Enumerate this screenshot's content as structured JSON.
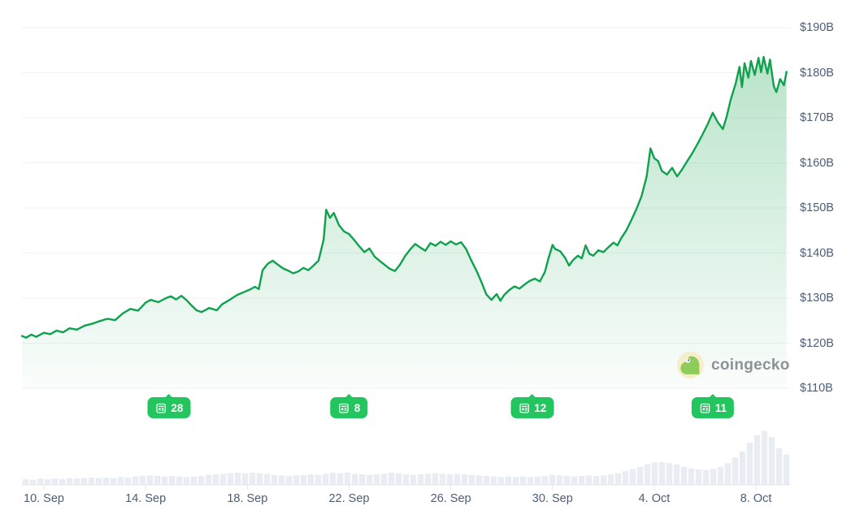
{
  "watermark": {
    "text": "coingecko"
  },
  "colors": {
    "line_green": "#0fa14e",
    "area_green": "#15a34d",
    "badge_green": "#22c55e",
    "label_slate": "#4c5e77",
    "gridline": "#f0f2f5",
    "axis": "#e7eaee",
    "volume_bar": "#e9edf3",
    "watermark_gray": "#8e9199"
  },
  "chart_data": {
    "type": "area",
    "title": "",
    "xlabel": "",
    "ylabel": "",
    "grid": true,
    "legend": false,
    "ylim": [
      110,
      190
    ],
    "y_ticks": [
      {
        "label": "$190B",
        "value": 190
      },
      {
        "label": "$180B",
        "value": 180
      },
      {
        "label": "$170B",
        "value": 170
      },
      {
        "label": "$160B",
        "value": 160
      },
      {
        "label": "$150B",
        "value": 150
      },
      {
        "label": "$140B",
        "value": 140
      },
      {
        "label": "$130B",
        "value": 130
      },
      {
        "label": "$120B",
        "value": 120
      },
      {
        "label": "$110B",
        "value": 110
      }
    ],
    "x_ticks": [
      {
        "label": "10. Sep",
        "t": 0
      },
      {
        "label": "14. Sep",
        "t": 4
      },
      {
        "label": "18. Sep",
        "t": 8
      },
      {
        "label": "22. Sep",
        "t": 12
      },
      {
        "label": "26. Sep",
        "t": 16
      },
      {
        "label": "30. Sep",
        "t": 20
      },
      {
        "label": "4. Oct",
        "t": 24
      },
      {
        "label": "8. Oct",
        "t": 28
      }
    ],
    "series": [
      {
        "name": "market-cap-usd-billions",
        "points": [
          [
            -0.86,
            121.6
          ],
          [
            -0.7,
            121.2
          ],
          [
            -0.5,
            121.9
          ],
          [
            -0.3,
            121.4
          ],
          [
            0,
            122.3
          ],
          [
            0.25,
            122.0
          ],
          [
            0.5,
            122.8
          ],
          [
            0.75,
            122.4
          ],
          [
            1,
            123.3
          ],
          [
            1.3,
            123.0
          ],
          [
            1.6,
            123.9
          ],
          [
            1.9,
            124.3
          ],
          [
            2.2,
            124.9
          ],
          [
            2.5,
            125.4
          ],
          [
            2.8,
            125.1
          ],
          [
            3.1,
            126.6
          ],
          [
            3.4,
            127.6
          ],
          [
            3.7,
            127.2
          ],
          [
            4,
            129.0
          ],
          [
            4.2,
            129.6
          ],
          [
            4.5,
            129.1
          ],
          [
            4.8,
            130.0
          ],
          [
            5,
            130.4
          ],
          [
            5.2,
            129.7
          ],
          [
            5.4,
            130.5
          ],
          [
            5.6,
            129.6
          ],
          [
            5.8,
            128.4
          ],
          [
            6,
            127.3
          ],
          [
            6.2,
            126.9
          ],
          [
            6.5,
            127.8
          ],
          [
            6.8,
            127.3
          ],
          [
            7,
            128.6
          ],
          [
            7.3,
            129.6
          ],
          [
            7.6,
            130.7
          ],
          [
            7.9,
            131.4
          ],
          [
            8.1,
            131.9
          ],
          [
            8.3,
            132.5
          ],
          [
            8.45,
            132.0
          ],
          [
            8.6,
            136.2
          ],
          [
            8.8,
            137.6
          ],
          [
            9,
            138.3
          ],
          [
            9.2,
            137.4
          ],
          [
            9.4,
            136.6
          ],
          [
            9.6,
            136.1
          ],
          [
            9.8,
            135.5
          ],
          [
            10,
            135.9
          ],
          [
            10.2,
            136.7
          ],
          [
            10.4,
            136.2
          ],
          [
            10.6,
            137.2
          ],
          [
            10.8,
            138.3
          ],
          [
            11,
            143.0
          ],
          [
            11.1,
            149.6
          ],
          [
            11.25,
            147.8
          ],
          [
            11.4,
            148.9
          ],
          [
            11.6,
            146.2
          ],
          [
            11.8,
            144.8
          ],
          [
            12,
            144.2
          ],
          [
            12.2,
            142.9
          ],
          [
            12.4,
            141.5
          ],
          [
            12.6,
            140.2
          ],
          [
            12.8,
            141.0
          ],
          [
            13,
            139.2
          ],
          [
            13.3,
            137.8
          ],
          [
            13.6,
            136.5
          ],
          [
            13.8,
            136.0
          ],
          [
            14,
            137.4
          ],
          [
            14.2,
            139.3
          ],
          [
            14.4,
            140.8
          ],
          [
            14.6,
            142.0
          ],
          [
            14.8,
            141.2
          ],
          [
            15,
            140.5
          ],
          [
            15.2,
            142.2
          ],
          [
            15.4,
            141.6
          ],
          [
            15.6,
            142.5
          ],
          [
            15.8,
            141.8
          ],
          [
            16,
            142.6
          ],
          [
            16.2,
            141.9
          ],
          [
            16.4,
            142.4
          ],
          [
            16.6,
            140.9
          ],
          [
            16.8,
            138.4
          ],
          [
            17,
            136.2
          ],
          [
            17.2,
            133.6
          ],
          [
            17.4,
            130.8
          ],
          [
            17.6,
            129.6
          ],
          [
            17.8,
            130.9
          ],
          [
            17.95,
            129.4
          ],
          [
            18.1,
            130.7
          ],
          [
            18.3,
            131.8
          ],
          [
            18.5,
            132.6
          ],
          [
            18.7,
            132.1
          ],
          [
            18.9,
            133.0
          ],
          [
            19.1,
            133.8
          ],
          [
            19.3,
            134.3
          ],
          [
            19.5,
            133.7
          ],
          [
            19.7,
            135.8
          ],
          [
            19.85,
            139.0
          ],
          [
            20,
            141.8
          ],
          [
            20.1,
            140.9
          ],
          [
            20.3,
            140.4
          ],
          [
            20.5,
            138.9
          ],
          [
            20.65,
            137.2
          ],
          [
            20.8,
            138.4
          ],
          [
            21,
            139.4
          ],
          [
            21.15,
            138.8
          ],
          [
            21.3,
            141.7
          ],
          [
            21.45,
            139.8
          ],
          [
            21.6,
            139.4
          ],
          [
            21.8,
            140.6
          ],
          [
            22,
            140.2
          ],
          [
            22.2,
            141.3
          ],
          [
            22.4,
            142.3
          ],
          [
            22.55,
            141.7
          ],
          [
            22.7,
            143.3
          ],
          [
            22.9,
            145.0
          ],
          [
            23.1,
            147.3
          ],
          [
            23.3,
            149.8
          ],
          [
            23.5,
            152.6
          ],
          [
            23.7,
            157.0
          ],
          [
            23.85,
            163.2
          ],
          [
            24,
            161.0
          ],
          [
            24.15,
            160.4
          ],
          [
            24.3,
            158.2
          ],
          [
            24.5,
            157.4
          ],
          [
            24.7,
            158.9
          ],
          [
            24.9,
            157.0
          ],
          [
            25.1,
            158.6
          ],
          [
            25.3,
            160.4
          ],
          [
            25.5,
            162.2
          ],
          [
            25.7,
            164.2
          ],
          [
            25.9,
            166.3
          ],
          [
            26.1,
            168.6
          ],
          [
            26.3,
            171.1
          ],
          [
            26.5,
            169.0
          ],
          [
            26.7,
            167.5
          ],
          [
            26.85,
            170.3
          ],
          [
            27,
            173.9
          ],
          [
            27.2,
            177.6
          ],
          [
            27.35,
            181.3
          ],
          [
            27.45,
            176.8
          ],
          [
            27.55,
            182.1
          ],
          [
            27.7,
            178.9
          ],
          [
            27.8,
            182.6
          ],
          [
            27.95,
            179.5
          ],
          [
            28.1,
            183.3
          ],
          [
            28.2,
            180.1
          ],
          [
            28.3,
            183.5
          ],
          [
            28.45,
            179.8
          ],
          [
            28.55,
            182.9
          ],
          [
            28.7,
            177.0
          ],
          [
            28.8,
            175.7
          ],
          [
            28.95,
            178.6
          ],
          [
            29.1,
            177.2
          ],
          [
            29.2,
            180.2
          ]
        ]
      },
      {
        "name": "volume-relative",
        "type": "bar",
        "values": [
          0.1,
          0.09,
          0.11,
          0.1,
          0.11,
          0.1,
          0.12,
          0.11,
          0.12,
          0.13,
          0.12,
          0.13,
          0.12,
          0.14,
          0.13,
          0.15,
          0.16,
          0.17,
          0.16,
          0.15,
          0.16,
          0.15,
          0.14,
          0.15,
          0.16,
          0.18,
          0.19,
          0.2,
          0.21,
          0.22,
          0.21,
          0.22,
          0.21,
          0.2,
          0.18,
          0.17,
          0.16,
          0.17,
          0.18,
          0.19,
          0.18,
          0.2,
          0.22,
          0.21,
          0.22,
          0.2,
          0.19,
          0.18,
          0.19,
          0.2,
          0.22,
          0.21,
          0.19,
          0.18,
          0.19,
          0.2,
          0.21,
          0.2,
          0.19,
          0.2,
          0.19,
          0.18,
          0.17,
          0.16,
          0.15,
          0.14,
          0.15,
          0.14,
          0.15,
          0.14,
          0.15,
          0.16,
          0.18,
          0.17,
          0.16,
          0.15,
          0.16,
          0.17,
          0.16,
          0.17,
          0.19,
          0.21,
          0.25,
          0.29,
          0.33,
          0.38,
          0.41,
          0.42,
          0.4,
          0.37,
          0.33,
          0.3,
          0.28,
          0.27,
          0.29,
          0.33,
          0.4,
          0.5,
          0.62,
          0.78,
          0.92,
          1.0,
          0.88,
          0.68,
          0.56
        ]
      }
    ],
    "news_markers": [
      {
        "count": "28",
        "t": 4.92
      },
      {
        "count": "8",
        "t": 12.0
      },
      {
        "count": "12",
        "t": 19.2
      },
      {
        "count": "11",
        "t": 26.3
      }
    ]
  }
}
